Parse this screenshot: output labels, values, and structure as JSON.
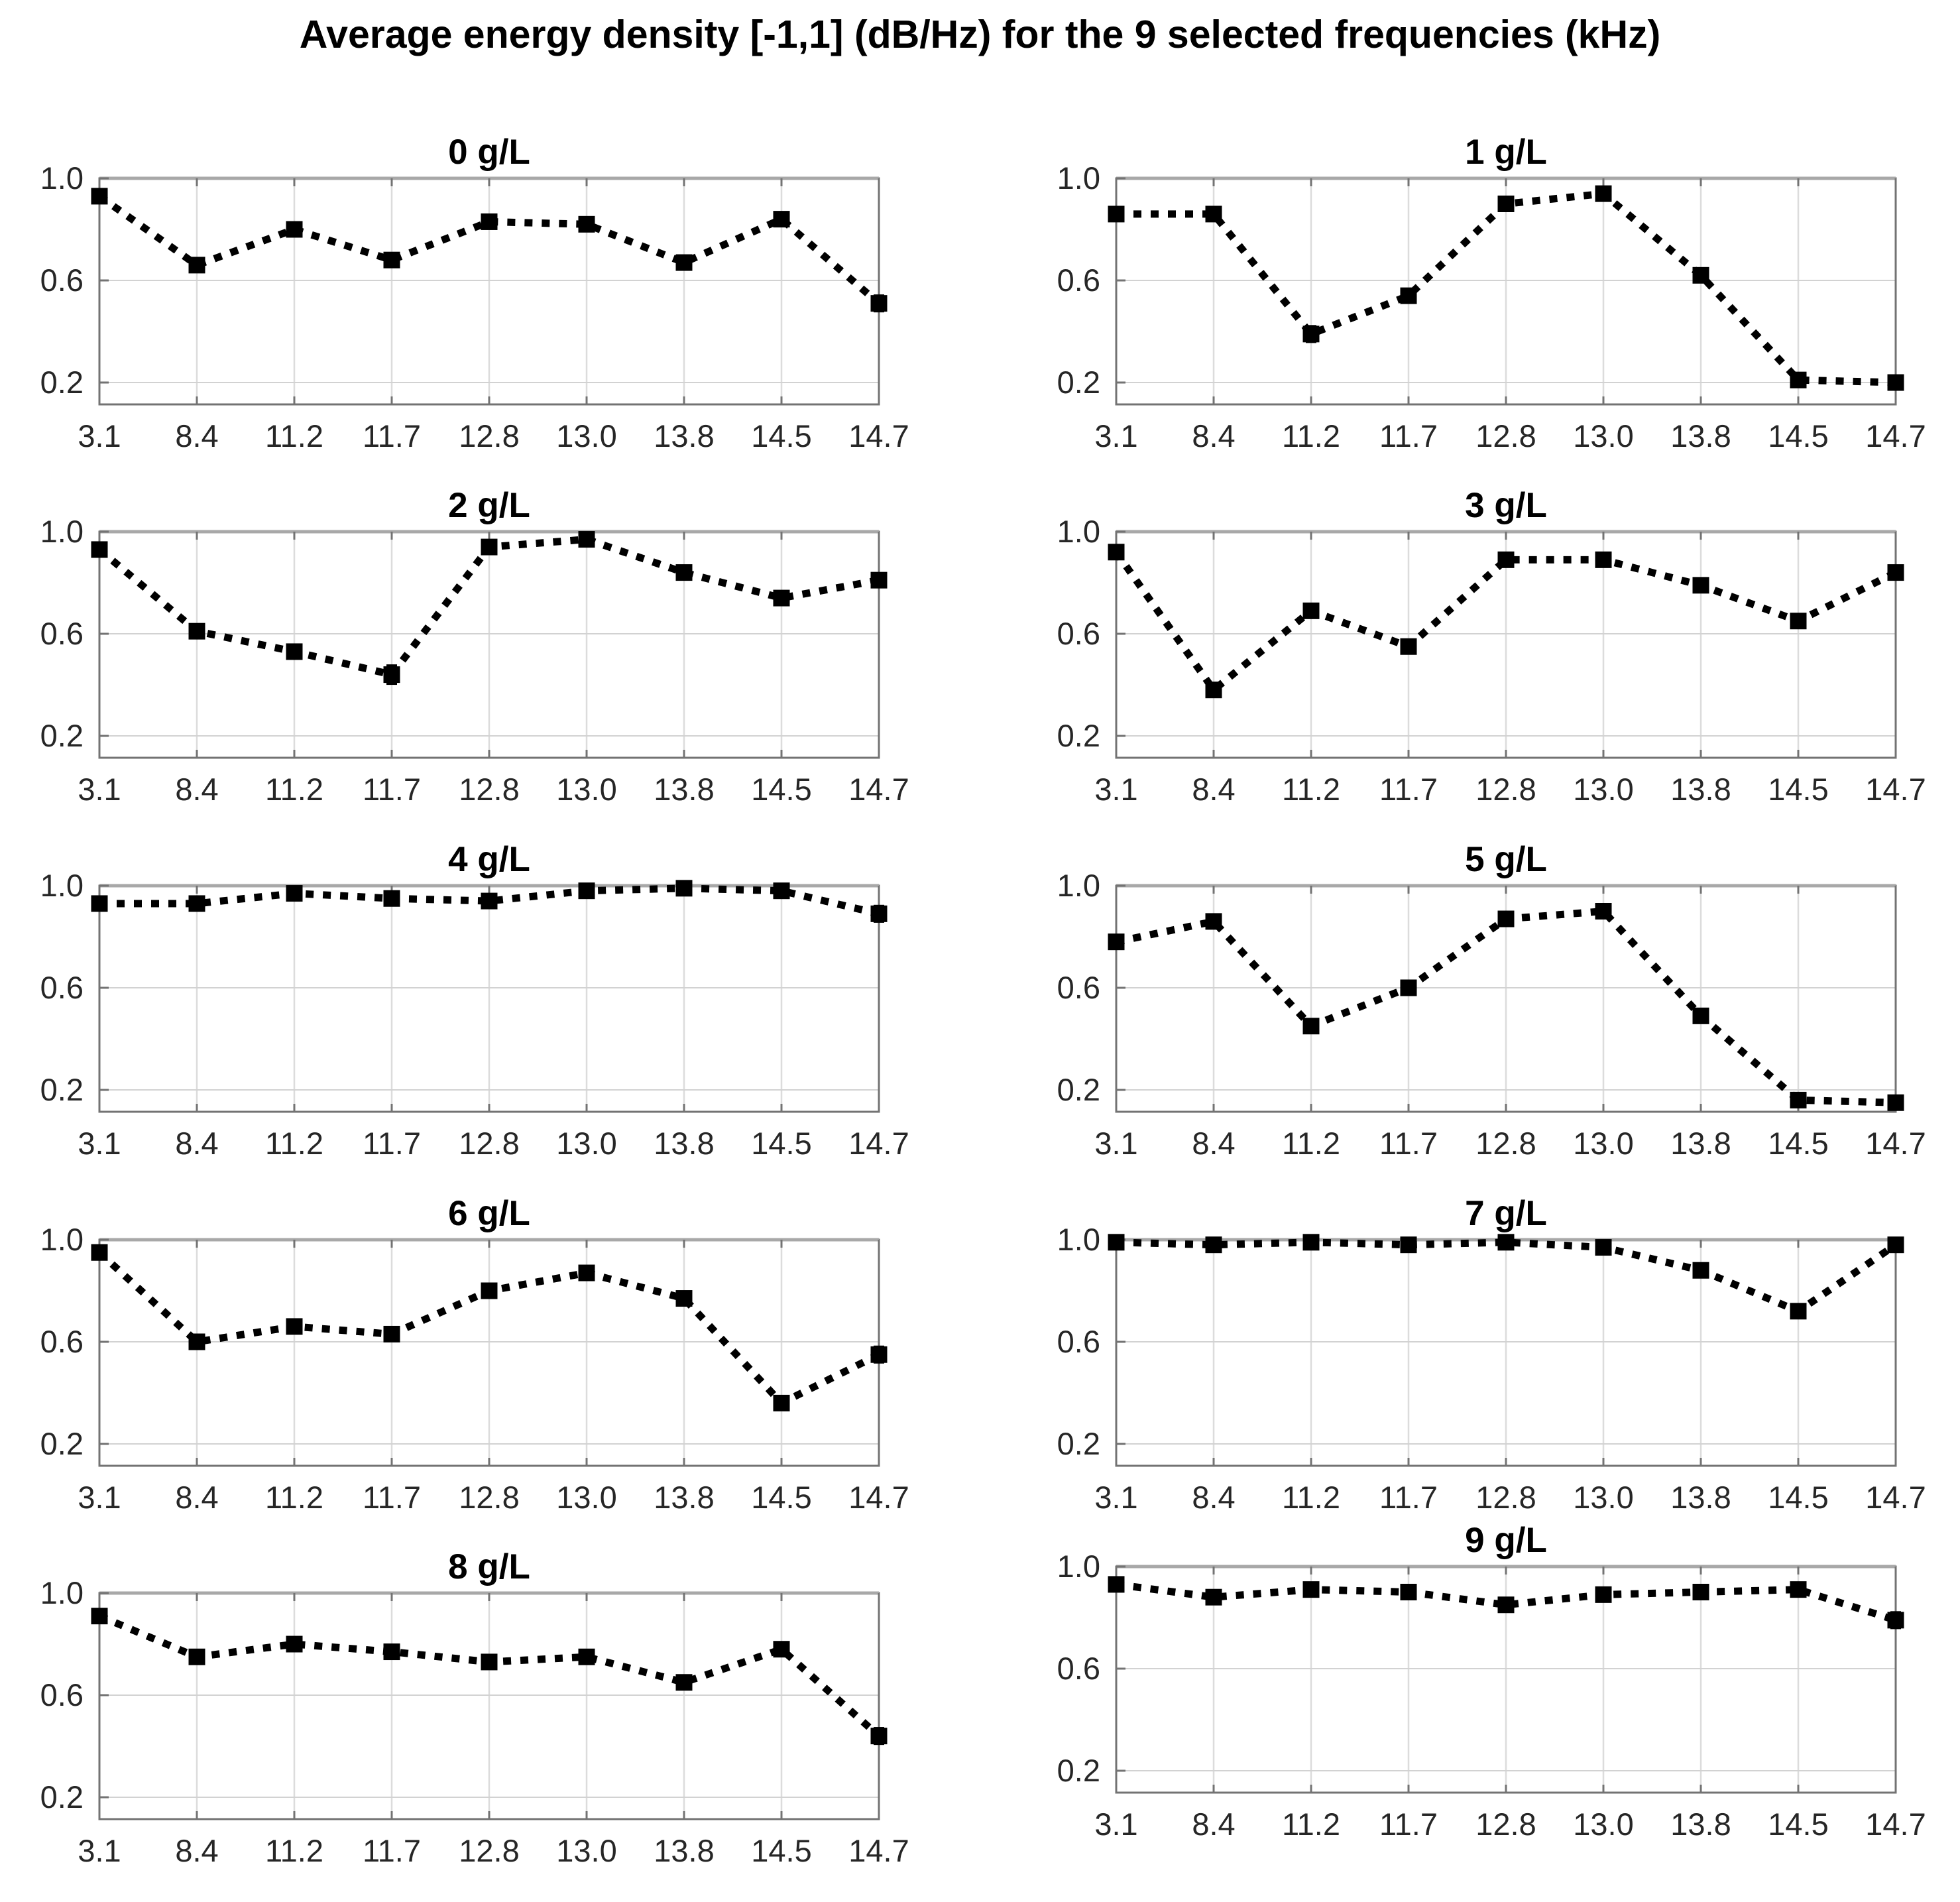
{
  "figure": {
    "title": "Average energy density [-1,1] (dB/Hz) for the 9 selected frequencies (kHz)"
  },
  "chart_data": {
    "type": "line",
    "title": "Average energy density [-1,1] (dB/Hz) for the 9 selected frequencies (kHz)",
    "line_style": "dotted",
    "marker": "filled-square",
    "series_color": "#000000",
    "gridline_color": "#d2d2d2",
    "axis_color": "#737373",
    "background_color": "#ffffff",
    "categories": [
      "3.1",
      "8.4",
      "11.2",
      "11.7",
      "12.8",
      "13.0",
      "13.8",
      "14.5",
      "14.7"
    ],
    "x_unit": "kHz",
    "y_unit": "dB/Hz normalized [-1,1]",
    "ylim": [
      0.11,
      1.0
    ],
    "yticks": [
      1.0,
      0.6,
      0.2
    ],
    "ytick_labels": [
      "1.0",
      "0.6",
      "0.2"
    ],
    "grid": true,
    "legend": "none",
    "layout": {
      "rows": 5,
      "cols": 2,
      "order": "row-major"
    },
    "subplots": [
      {
        "title": "0 g/L",
        "values": [
          0.93,
          0.66,
          0.8,
          0.68,
          0.83,
          0.82,
          0.67,
          0.84,
          0.51
        ],
        "errors": [
          0.015,
          0.01,
          0.01,
          0.015,
          0.01,
          0.01,
          0.015,
          0.01,
          0.03
        ]
      },
      {
        "title": "1 g/L",
        "values": [
          0.86,
          0.86,
          0.39,
          0.54,
          0.9,
          0.94,
          0.62,
          0.21,
          0.2
        ],
        "errors": [
          0.01,
          0.01,
          0.03,
          0.02,
          0.01,
          0.01,
          0.015,
          0.02,
          0.015
        ]
      },
      {
        "title": "2 g/L",
        "values": [
          0.93,
          0.61,
          0.53,
          0.44,
          0.94,
          0.97,
          0.84,
          0.74,
          0.81
        ],
        "errors": [
          0.015,
          0.015,
          0.01,
          0.035,
          0.01,
          0.01,
          0.01,
          0.015,
          0.025
        ]
      },
      {
        "title": "3 g/L",
        "values": [
          0.92,
          0.38,
          0.69,
          0.55,
          0.89,
          0.89,
          0.79,
          0.65,
          0.84
        ],
        "errors": [
          0.01,
          0.025,
          0.015,
          0.02,
          0.01,
          0.01,
          0.01,
          0.025,
          0.025
        ]
      },
      {
        "title": "4 g/L",
        "values": [
          0.93,
          0.93,
          0.97,
          0.95,
          0.94,
          0.98,
          0.99,
          0.98,
          0.89
        ],
        "errors": [
          0.01,
          0.01,
          0.01,
          0.01,
          0.01,
          0.01,
          0.01,
          0.01,
          0.03
        ]
      },
      {
        "title": "5 g/L",
        "values": [
          0.78,
          0.86,
          0.45,
          0.6,
          0.87,
          0.9,
          0.49,
          0.16,
          0.15
        ],
        "errors": [
          0.015,
          0.01,
          0.02,
          0.015,
          0.01,
          0.01,
          0.025,
          0.015,
          0.025
        ]
      },
      {
        "title": "6 g/L",
        "values": [
          0.95,
          0.6,
          0.66,
          0.63,
          0.8,
          0.87,
          0.77,
          0.36,
          0.55
        ],
        "errors": [
          0.01,
          0.015,
          0.01,
          0.01,
          0.01,
          0.01,
          0.01,
          0.015,
          0.03
        ]
      },
      {
        "title": "7 g/L",
        "values": [
          0.99,
          0.98,
          0.99,
          0.98,
          0.99,
          0.97,
          0.88,
          0.72,
          0.98
        ],
        "errors": [
          0.005,
          0.01,
          0.005,
          0.01,
          0.005,
          0.01,
          0.01,
          0.025,
          0.02
        ]
      },
      {
        "title": "8 g/L",
        "values": [
          0.91,
          0.75,
          0.8,
          0.77,
          0.73,
          0.75,
          0.65,
          0.78,
          0.44
        ],
        "errors": [
          0.01,
          0.015,
          0.01,
          0.01,
          0.01,
          0.01,
          0.015,
          0.01,
          0.03
        ]
      },
      {
        "title": "9 g/L",
        "values": [
          0.93,
          0.88,
          0.91,
          0.9,
          0.85,
          0.89,
          0.9,
          0.91,
          0.79
        ],
        "errors": [
          0.01,
          0.025,
          0.01,
          0.01,
          0.015,
          0.01,
          0.01,
          0.01,
          0.03
        ]
      }
    ]
  }
}
